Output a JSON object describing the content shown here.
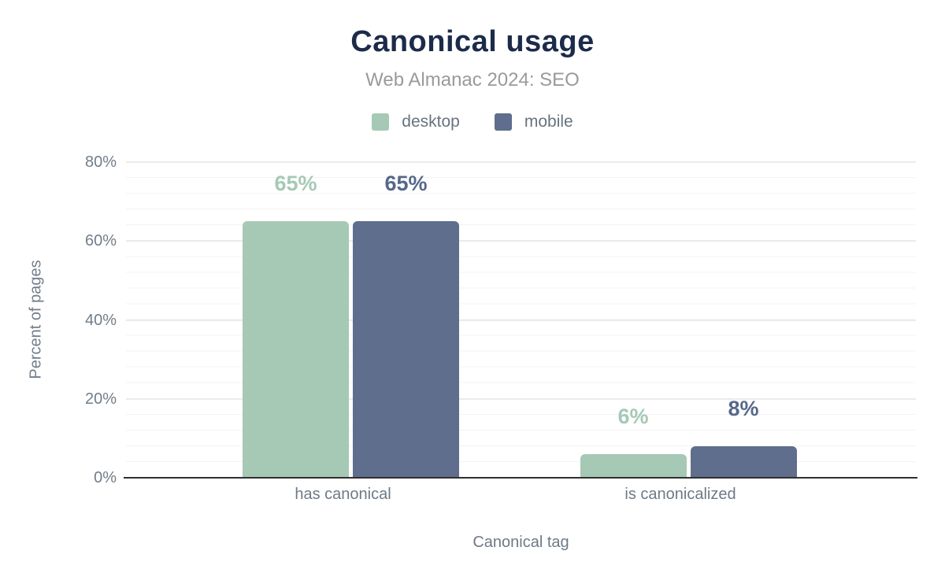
{
  "chart_data": {
    "type": "bar",
    "title": "Canonical usage",
    "subtitle": "Web Almanac 2024: SEO",
    "xlabel": "Canonical tag",
    "ylabel": "Percent of pages",
    "categories": [
      "has canonical",
      "is canonicalized"
    ],
    "series": [
      {
        "name": "desktop",
        "color": "#a6c9b6",
        "label_color": "#a6c9b6",
        "values": [
          65,
          6
        ],
        "labels": [
          "65%",
          "6%"
        ]
      },
      {
        "name": "mobile",
        "color": "#5f6e8c",
        "label_color": "#56688a",
        "values": [
          65,
          8
        ],
        "labels": [
          "65%",
          "8%"
        ]
      }
    ],
    "ylim": [
      0,
      80
    ],
    "ytick_interval": 20,
    "minor_tick_interval": 4,
    "ytick_labels": [
      "0%",
      "20%",
      "40%",
      "60%",
      "80%"
    ],
    "grid": true,
    "legend_position": "top"
  },
  "colors": {
    "title": "#1c2b4a",
    "subtitle": "#9a9a9a",
    "axis_text": "#717e8a",
    "axis_line": "#2f2f2f",
    "major_gridline": "#ebebeb",
    "minor_gridline": "#f3f3f3",
    "desktop": "#a6c9b6",
    "mobile": "#5f6e8c"
  }
}
